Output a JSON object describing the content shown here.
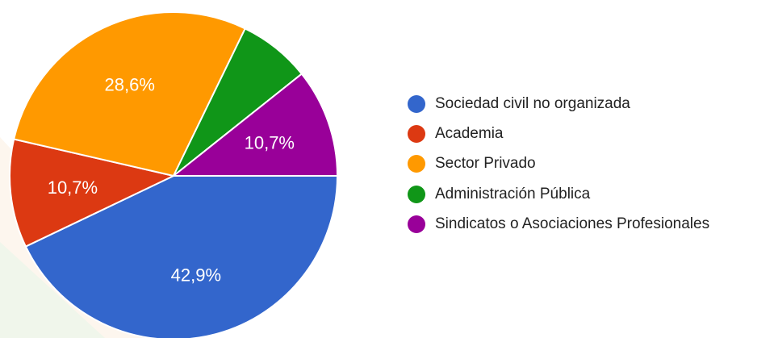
{
  "chart_data": {
    "type": "pie",
    "title": "",
    "start_angle_deg": 90,
    "direction": "counterclockwise",
    "legend_position": "right",
    "slices": [
      {
        "label": "Sociedad civil no organizada",
        "value": 42.9,
        "display": "42,9%",
        "color": "#3366cc",
        "label_shown": true
      },
      {
        "label": "Academia",
        "value": 10.7,
        "display": "10,7%",
        "color": "#dc3912",
        "label_shown": true
      },
      {
        "label": "Sector Privado",
        "value": 28.6,
        "display": "28,6%",
        "color": "#ff9900",
        "label_shown": true
      },
      {
        "label": "Administración Pública",
        "value": 7.1,
        "display": "",
        "color": "#109618",
        "label_shown": false
      },
      {
        "label": "Sindicatos o Asociaciones Profesionales",
        "value": 10.7,
        "display": "10,7%",
        "color": "#990099",
        "label_shown": true
      }
    ]
  }
}
